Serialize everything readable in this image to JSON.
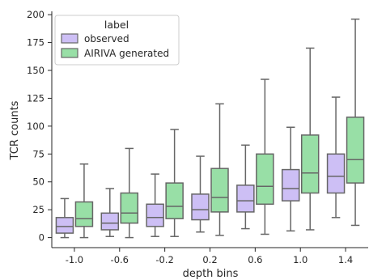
{
  "chart_data": {
    "type": "box",
    "xlabel": "depth bins",
    "ylabel": "TCR counts",
    "ylim": [
      -9,
      203
    ],
    "yticks": [
      0,
      25,
      50,
      75,
      100,
      125,
      150,
      175,
      200
    ],
    "categories": [
      "-1.0",
      "-0.6",
      "-0.2",
      "0.2",
      "0.6",
      "1.0",
      "1.4"
    ],
    "legend": {
      "title": "label",
      "placement": "upper-left"
    },
    "grid": false,
    "series": [
      {
        "name": "observed",
        "color": "#cdbff5",
        "boxes": [
          {
            "whislo": 0,
            "q1": 4,
            "med": 10,
            "q3": 18,
            "whishi": 35
          },
          {
            "whislo": 1,
            "q1": 7,
            "med": 13,
            "q3": 22,
            "whishi": 44
          },
          {
            "whislo": 1,
            "q1": 10,
            "med": 18,
            "q3": 30,
            "whishi": 57
          },
          {
            "whislo": 5,
            "q1": 16,
            "med": 25,
            "q3": 39,
            "whishi": 73
          },
          {
            "whislo": 8,
            "q1": 23,
            "med": 33,
            "q3": 47,
            "whishi": 83
          },
          {
            "whislo": 6,
            "q1": 33,
            "med": 44,
            "q3": 61,
            "whishi": 99
          },
          {
            "whislo": 18,
            "q1": 40,
            "med": 55,
            "q3": 75,
            "whishi": 126
          }
        ]
      },
      {
        "name": "AIRIVA generated",
        "color": "#98dfa6",
        "boxes": [
          {
            "whislo": 0,
            "q1": 10,
            "med": 17,
            "q3": 32,
            "whishi": 66
          },
          {
            "whislo": 0,
            "q1": 13,
            "med": 22,
            "q3": 40,
            "whishi": 80
          },
          {
            "whislo": 1,
            "q1": 17,
            "med": 28,
            "q3": 49,
            "whishi": 97
          },
          {
            "whislo": 2,
            "q1": 23,
            "med": 36,
            "q3": 62,
            "whishi": 120
          },
          {
            "whislo": 3,
            "q1": 30,
            "med": 46,
            "q3": 75,
            "whishi": 142
          },
          {
            "whislo": 7,
            "q1": 40,
            "med": 58,
            "q3": 92,
            "whishi": 170
          },
          {
            "whislo": 11,
            "q1": 49,
            "med": 70,
            "q3": 108,
            "whishi": 196
          }
        ]
      }
    ]
  }
}
